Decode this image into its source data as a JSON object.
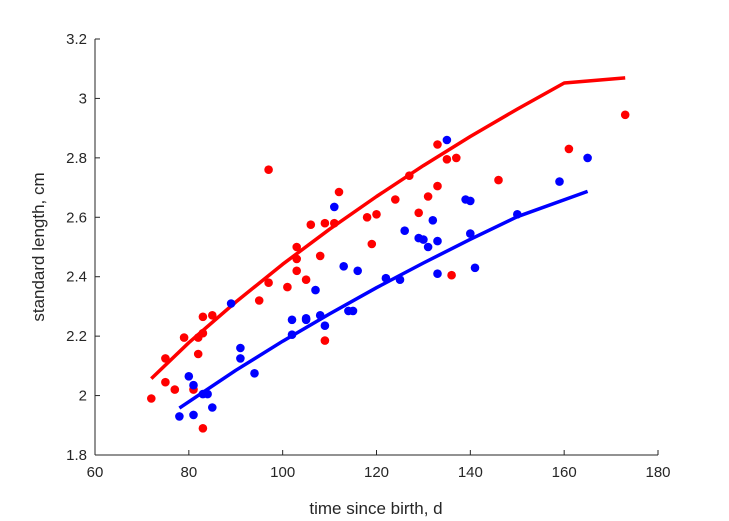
{
  "chart_data": {
    "type": "scatter",
    "xlabel": "time since birth, d",
    "ylabel": "standard length, cm",
    "xlim": [
      60,
      180
    ],
    "ylim": [
      1.8,
      3.2
    ],
    "xticks": [
      "60",
      "80",
      "100",
      "120",
      "140",
      "160",
      "180"
    ],
    "yticks": [
      "1.8",
      "2",
      "2.2",
      "2.4",
      "2.6",
      "2.8",
      "3",
      "3.2"
    ],
    "grid": false,
    "series": [
      {
        "color": "#ff0000",
        "points": [
          [
            72,
            1.99
          ],
          [
            75,
            2.125
          ],
          [
            75,
            2.045
          ],
          [
            77,
            2.02
          ],
          [
            79,
            2.195
          ],
          [
            81,
            2.02
          ],
          [
            82,
            2.14
          ],
          [
            82,
            2.195
          ],
          [
            83,
            2.21
          ],
          [
            83,
            2.265
          ],
          [
            83,
            1.89
          ],
          [
            85,
            2.27
          ],
          [
            95,
            2.32
          ],
          [
            97,
            2.38
          ],
          [
            97,
            2.76
          ],
          [
            101,
            2.365
          ],
          [
            103,
            2.42
          ],
          [
            103,
            2.46
          ],
          [
            103,
            2.5
          ],
          [
            105,
            2.39
          ],
          [
            106,
            2.575
          ],
          [
            108,
            2.47
          ],
          [
            109,
            2.58
          ],
          [
            109,
            2.185
          ],
          [
            111,
            2.58
          ],
          [
            112,
            2.685
          ],
          [
            118,
            2.6
          ],
          [
            119,
            2.51
          ],
          [
            120,
            2.61
          ],
          [
            124,
            2.66
          ],
          [
            127,
            2.74
          ],
          [
            129,
            2.615
          ],
          [
            131,
            2.67
          ],
          [
            133,
            2.705
          ],
          [
            133,
            2.845
          ],
          [
            135,
            2.795
          ],
          [
            136,
            2.405
          ],
          [
            137,
            2.8
          ],
          [
            146,
            2.725
          ],
          [
            161,
            2.83
          ],
          [
            173,
            2.945
          ]
        ],
        "fit": [
          [
            72,
            2.057
          ],
          [
            80,
            2.178
          ],
          [
            90,
            2.315
          ],
          [
            100,
            2.442
          ],
          [
            110,
            2.56
          ],
          [
            120,
            2.67
          ],
          [
            130,
            2.774
          ],
          [
            140,
            2.872
          ],
          [
            150,
            2.964
          ],
          [
            160,
            3.052
          ],
          [
            173,
            3.069
          ]
        ]
      },
      {
        "color": "#0000ff",
        "points": [
          [
            78,
            1.93
          ],
          [
            80,
            2.065
          ],
          [
            81,
            2.035
          ],
          [
            81,
            1.935
          ],
          [
            83,
            2.005
          ],
          [
            84,
            2.005
          ],
          [
            85,
            1.96
          ],
          [
            89,
            2.31
          ],
          [
            91,
            2.16
          ],
          [
            91,
            2.125
          ],
          [
            94,
            2.075
          ],
          [
            102,
            2.255
          ],
          [
            102,
            2.205
          ],
          [
            105,
            2.255
          ],
          [
            105,
            2.26
          ],
          [
            107,
            2.355
          ],
          [
            108,
            2.27
          ],
          [
            109,
            2.235
          ],
          [
            111,
            2.635
          ],
          [
            113,
            2.435
          ],
          [
            114,
            2.285
          ],
          [
            115,
            2.285
          ],
          [
            116,
            2.42
          ],
          [
            122,
            2.395
          ],
          [
            125,
            2.39
          ],
          [
            126,
            2.555
          ],
          [
            129,
            2.53
          ],
          [
            130,
            2.525
          ],
          [
            131,
            2.5
          ],
          [
            132,
            2.59
          ],
          [
            133,
            2.52
          ],
          [
            133,
            2.41
          ],
          [
            135,
            2.86
          ],
          [
            139,
            2.66
          ],
          [
            140,
            2.655
          ],
          [
            140,
            2.545
          ],
          [
            141,
            2.43
          ],
          [
            150,
            2.61
          ],
          [
            159,
            2.72
          ],
          [
            165,
            2.8
          ]
        ],
        "fit": [
          [
            78,
            1.958
          ],
          [
            90,
            2.085
          ],
          [
            100,
            2.183
          ],
          [
            110,
            2.275
          ],
          [
            120,
            2.363
          ],
          [
            130,
            2.446
          ],
          [
            140,
            2.526
          ],
          [
            150,
            2.602
          ],
          [
            165,
            2.687
          ]
        ]
      }
    ]
  }
}
